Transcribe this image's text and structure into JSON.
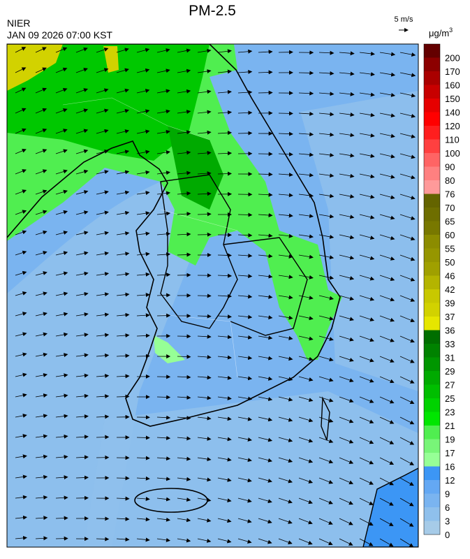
{
  "title": "PM-2.5",
  "agency": "NIER",
  "timestamp": "JAN 09 2026 07:00 KST",
  "wind_scale": "5 m/s",
  "unit": "μg/m",
  "unit_superscript": "3",
  "colorbar": {
    "levels": [
      0,
      3,
      6,
      9,
      12,
      16,
      17,
      19,
      21,
      23,
      25,
      27,
      29,
      31,
      33,
      36,
      37,
      39,
      42,
      46,
      50,
      55,
      60,
      65,
      70,
      76,
      80,
      90,
      100,
      110,
      120,
      140,
      150,
      160,
      170,
      200
    ],
    "colors": [
      "#a6cbe8",
      "#8fc0ec",
      "#7ab4f0",
      "#64a8f3",
      "#3c96f5",
      "#96ff96",
      "#78f578",
      "#50ee50",
      "#00e600",
      "#00d200",
      "#00be00",
      "#00aa00",
      "#009600",
      "#008200",
      "#006e00",
      "#e6e600",
      "#d2d200",
      "#c8c800",
      "#b4b400",
      "#a0a000",
      "#969600",
      "#8c8c00",
      "#787800",
      "#6e6e00",
      "#646400",
      "#ff9a9a",
      "#ff8080",
      "#ff6464",
      "#ff4040",
      "#ff1e1e",
      "#ff0000",
      "#e60000",
      "#c80000",
      "#aa0000",
      "#8c0000",
      "#640000"
    ]
  }
}
